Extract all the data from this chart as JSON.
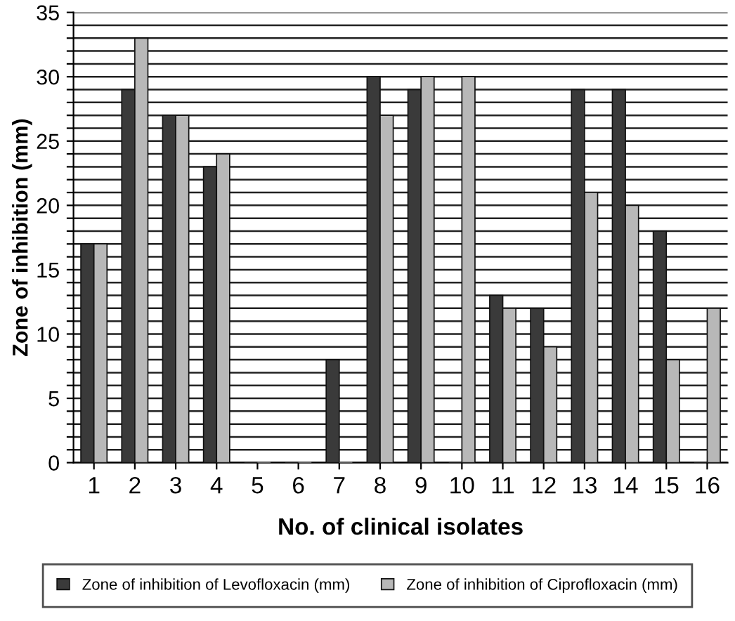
{
  "chart_data": {
    "type": "bar",
    "xlabel": "No. of clinical isolates",
    "ylabel": "Zone of inhibition (mm)",
    "categories": [
      "1",
      "2",
      "3",
      "4",
      "5",
      "6",
      "7",
      "8",
      "9",
      "10",
      "11",
      "12",
      "13",
      "14",
      "15",
      "16"
    ],
    "series": [
      {
        "name": "Zone of inhibition of Levofloxacin (mm)",
        "color": "#3a3a3a",
        "values": [
          17,
          29,
          27,
          23,
          0,
          0,
          8,
          30,
          29,
          0,
          13,
          12,
          29,
          29,
          18,
          0
        ]
      },
      {
        "name": "Zone of inhibition of Ciprofloxacin (mm)",
        "color": "#b8b8b8",
        "values": [
          17,
          33,
          27,
          24,
          0,
          0,
          0,
          27,
          30,
          30,
          12,
          9,
          21,
          20,
          8,
          12
        ]
      }
    ],
    "ylim": [
      0,
      35
    ],
    "yticks": [
      0,
      {
        "value": 1,
        "label": null
      },
      {
        "value": 2,
        "label": null
      },
      {
        "value": 3,
        "label": null
      },
      {
        "value": 4,
        "label": null
      },
      5,
      {
        "value": 6,
        "label": null
      },
      {
        "value": 7,
        "label": null
      },
      {
        "value": 8,
        "label": null
      },
      {
        "value": 9,
        "label": null
      },
      10,
      {
        "value": 11,
        "label": null
      },
      {
        "value": 12,
        "label": null
      },
      {
        "value": 13,
        "label": null
      },
      {
        "value": 14,
        "label": null
      },
      15,
      {
        "value": 16,
        "label": null
      },
      {
        "value": 17,
        "label": null
      },
      {
        "value": 18,
        "label": null
      },
      {
        "value": 19,
        "label": null
      },
      20,
      {
        "value": 21,
        "label": null
      },
      {
        "value": 22,
        "label": null
      },
      {
        "value": 23,
        "label": null
      },
      {
        "value": 24,
        "label": null
      },
      25,
      {
        "value": 26,
        "label": null
      },
      {
        "value": 27,
        "label": null
      },
      {
        "value": 28,
        "label": null
      },
      {
        "value": 29,
        "label": null
      },
      30,
      {
        "value": 31,
        "label": null
      },
      {
        "value": 32,
        "label": null
      },
      {
        "value": 33,
        "label": null
      },
      {
        "value": 34,
        "label": null
      },
      35
    ],
    "grid": "y",
    "legend": "bottom"
  }
}
